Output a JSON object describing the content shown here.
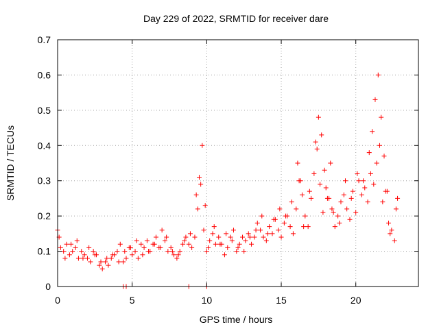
{
  "chart_data": {
    "type": "scatter",
    "title": "Day 229 of 2022, SRMTID for receiver dare",
    "xlabel": "GPS time / hours",
    "ylabel": "SRMTID / TECUs",
    "xlim": [
      0,
      24.2
    ],
    "ylim": [
      0,
      0.7
    ],
    "xticks": [
      0,
      5,
      10,
      15,
      20
    ],
    "xtick_labels": [
      "0",
      "5",
      "10",
      "15",
      "20"
    ],
    "yticks": [
      0,
      0.1,
      0.2,
      0.3,
      0.4,
      0.5,
      0.6,
      0.7
    ],
    "ytick_labels": [
      "0",
      "0.1",
      "0.2",
      "0.3",
      "0.4",
      "0.5",
      "0.6",
      "0.7"
    ],
    "grid": true,
    "marker": "+",
    "series": [
      {
        "name": "SRMTID",
        "color": "#ff0000",
        "x": [
          0.0,
          0.2,
          0.4,
          0.6,
          0.8,
          1.0,
          1.2,
          1.4,
          1.6,
          1.8,
          2.0,
          2.2,
          2.4,
          2.6,
          2.8,
          3.0,
          3.2,
          3.4,
          3.6,
          3.8,
          4.0,
          4.2,
          4.4,
          4.6,
          4.8,
          5.0,
          5.2,
          5.4,
          5.6,
          5.8,
          6.0,
          6.2,
          6.4,
          6.6,
          6.8,
          7.0,
          7.2,
          7.4,
          7.6,
          7.8,
          8.0,
          8.2,
          8.4,
          8.6,
          8.8,
          9.0,
          9.2,
          9.4,
          9.6,
          9.8,
          10.0,
          10.2,
          10.4,
          10.6,
          10.8,
          11.0,
          11.2,
          11.4,
          11.6,
          11.8,
          12.0,
          12.2,
          12.4,
          12.6,
          12.8,
          13.0,
          13.2,
          13.4,
          13.6,
          13.8,
          14.0,
          14.2,
          14.4,
          14.6,
          14.8,
          15.0,
          15.2,
          15.4,
          15.6,
          15.8,
          16.0,
          16.2,
          16.4,
          16.6,
          16.8,
          17.0,
          17.2,
          17.4,
          17.6,
          17.8,
          18.0,
          18.2,
          18.4,
          18.6,
          18.8,
          19.0,
          19.2,
          19.4,
          19.6,
          19.8,
          20.0,
          20.2,
          20.4,
          20.6,
          20.8,
          21.0,
          21.2,
          21.4,
          21.6,
          21.8,
          22.0,
          22.2,
          22.4,
          22.6,
          22.8,
          0.1,
          0.5,
          0.9,
          1.3,
          1.7,
          2.1,
          2.5,
          2.9,
          3.3,
          3.7,
          4.1,
          4.5,
          4.9,
          5.3,
          5.7,
          6.1,
          6.5,
          6.9,
          7.3,
          7.7,
          8.1,
          8.5,
          8.9,
          9.3,
          9.5,
          9.7,
          9.9,
          10.1,
          10.5,
          10.9,
          11.3,
          11.7,
          12.1,
          12.5,
          12.9,
          13.3,
          13.7,
          14.1,
          14.5,
          14.9,
          15.3,
          15.7,
          16.1,
          16.3,
          16.5,
          16.9,
          17.3,
          17.5,
          17.7,
          17.9,
          18.1,
          18.3,
          18.5,
          18.9,
          19.3,
          19.7,
          20.1,
          20.5,
          20.9,
          21.1,
          21.3,
          21.5,
          21.7,
          21.9,
          22.1,
          22.3,
          22.7,
          4.4,
          4.6,
          8.8,
          10.0
        ],
        "y": [
          0.16,
          0.11,
          0.1,
          0.12,
          0.09,
          0.1,
          0.11,
          0.08,
          0.1,
          0.09,
          0.08,
          0.07,
          0.1,
          0.09,
          0.06,
          0.05,
          0.07,
          0.06,
          0.08,
          0.09,
          0.1,
          0.12,
          0.07,
          0.08,
          0.11,
          0.09,
          0.1,
          0.08,
          0.12,
          0.11,
          0.13,
          0.1,
          0.12,
          0.14,
          0.11,
          0.16,
          0.13,
          0.1,
          0.11,
          0.09,
          0.08,
          0.1,
          0.12,
          0.14,
          0.12,
          0.11,
          0.14,
          0.22,
          0.29,
          0.16,
          0.1,
          0.13,
          0.15,
          0.12,
          0.14,
          0.12,
          0.09,
          0.11,
          0.14,
          0.16,
          0.1,
          0.12,
          0.14,
          0.13,
          0.15,
          0.12,
          0.14,
          0.18,
          0.16,
          0.14,
          0.13,
          0.17,
          0.15,
          0.19,
          0.16,
          0.14,
          0.18,
          0.2,
          0.17,
          0.15,
          0.22,
          0.3,
          0.26,
          0.2,
          0.17,
          0.25,
          0.32,
          0.39,
          0.29,
          0.21,
          0.28,
          0.25,
          0.22,
          0.17,
          0.2,
          0.24,
          0.26,
          0.22,
          0.19,
          0.27,
          0.21,
          0.3,
          0.26,
          0.28,
          0.24,
          0.32,
          0.29,
          0.35,
          0.4,
          0.24,
          0.27,
          0.18,
          0.16,
          0.13,
          0.25,
          0.14,
          0.08,
          0.12,
          0.13,
          0.08,
          0.11,
          0.09,
          0.07,
          0.08,
          0.09,
          0.07,
          0.1,
          0.11,
          0.13,
          0.09,
          0.1,
          0.12,
          0.11,
          0.14,
          0.1,
          0.09,
          0.13,
          0.15,
          0.26,
          0.31,
          0.4,
          0.23,
          0.11,
          0.17,
          0.12,
          0.15,
          0.13,
          0.11,
          0.1,
          0.14,
          0.16,
          0.2,
          0.15,
          0.19,
          0.22,
          0.2,
          0.24,
          0.35,
          0.3,
          0.17,
          0.27,
          0.41,
          0.48,
          0.43,
          0.33,
          0.25,
          0.35,
          0.21,
          0.18,
          0.3,
          0.25,
          0.32,
          0.3,
          0.38,
          0.44,
          0.53,
          0.6,
          0.48,
          0.37,
          0.27,
          0.15,
          0.22,
          0.0,
          0.0,
          0.0,
          0.0
        ]
      }
    ]
  }
}
